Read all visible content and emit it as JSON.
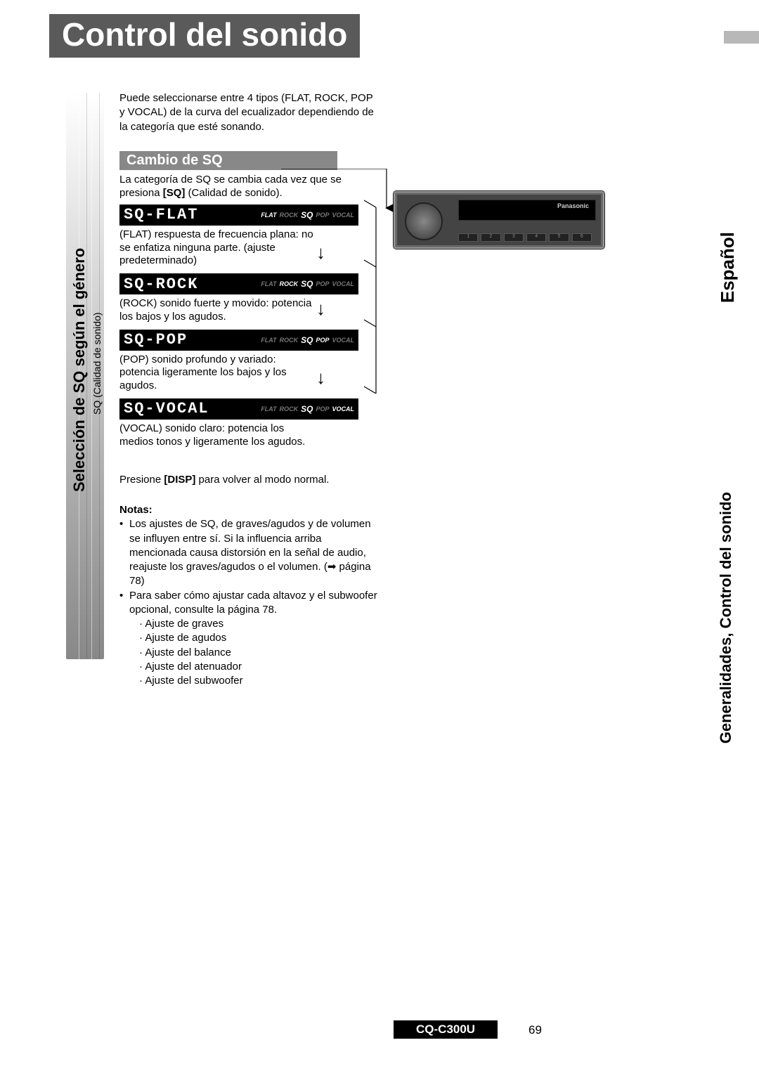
{
  "title": "Control del sonido",
  "side_left": {
    "main": "Selección de SQ según el género",
    "sub": "SQ (Calidad de sonido)"
  },
  "side_right": {
    "main": "Generalidades, Control del sonido",
    "lang": "Español"
  },
  "intro": "Puede seleccionarse entre 4 tipos (FLAT, ROCK, POP y VOCAL) de la curva del ecualizador dependiendo de la categoría que esté sonando.",
  "section_header": "Cambio de SQ",
  "section_desc_pre": "La categoría de SQ se cambia cada vez que se presiona ",
  "section_desc_bold": "[SQ]",
  "section_desc_post": " (Calidad de sonido).",
  "sq_modes": [
    {
      "name": "SQ-FLAT",
      "active": "FLAT",
      "desc": "(FLAT) respuesta de frecuencia plana: no se enfatiza ninguna parte. (ajuste predeterminado)",
      "arrow": true
    },
    {
      "name": "SQ-ROCK",
      "active": "ROCK",
      "desc": "(ROCK) sonido fuerte y movido: potencia los bajos y los agudos.",
      "arrow": true
    },
    {
      "name": "SQ-POP",
      "active": "POP",
      "desc": "(POP) sonido profundo y variado: potencia ligeramente los bajos y los agudos.",
      "arrow": true
    },
    {
      "name": "SQ-VOCAL",
      "active": "VOCAL",
      "desc": "(VOCAL) sonido claro: potencia los medios tonos y ligeramente los agudos.",
      "arrow": false
    }
  ],
  "icon_labels": [
    "FLAT",
    "ROCK",
    "SQ",
    "POP",
    "VOCAL"
  ],
  "press_disp_pre": "Presione ",
  "press_disp_bold": "[DISP]",
  "press_disp_post": " para volver al modo normal.",
  "notes_header": "Notas:",
  "notes": [
    "Los ajustes de SQ, de graves/agudos y de volumen se influyen entre sí. Si la influencia arriba mencionada causa distorsión en la señal de audio, reajuste los graves/agudos o el volumen. (➡ página 78)",
    "Para saber cómo ajustar cada altavoz y el subwoofer opcional, consulte la página 78."
  ],
  "sub_notes": [
    "Ajuste de graves",
    "Ajuste de agudos",
    "Ajuste del balance",
    "Ajuste del atenuador",
    "Ajuste del subwoofer"
  ],
  "radio": {
    "brand": "Panasonic",
    "buttons": [
      "1",
      "2",
      "3",
      "4",
      "5",
      "6"
    ]
  },
  "footer": {
    "model": "CQ-C300U",
    "page": "69"
  },
  "colors": {
    "title_bg": "#5a5a5a",
    "section_bg": "#888888",
    "display_bg": "#000000",
    "tab_bg": "#b8b8b8"
  }
}
